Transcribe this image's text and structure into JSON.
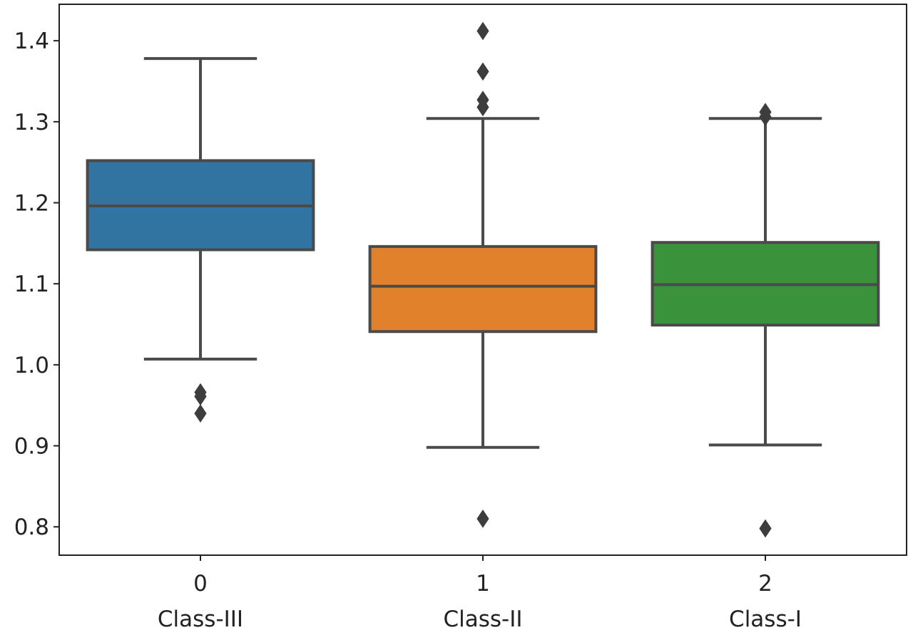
{
  "chart_data": {
    "type": "box",
    "title": "",
    "xlabel": "",
    "ylabel": "",
    "ylim": [
      0.765,
      1.445
    ],
    "yticks": [
      "0.8",
      "0.9",
      "1.0",
      "1.1",
      "1.2",
      "1.3",
      "1.4"
    ],
    "grid": false,
    "legend": "none",
    "categories": [
      "0",
      "1",
      "2"
    ],
    "category_sublabels": [
      "Class-III",
      "Class-II",
      "Class-I"
    ],
    "series": [
      {
        "category": "0",
        "color": "#3274a1",
        "whisker_low": 1.007,
        "q1": 1.142,
        "median": 1.196,
        "q3": 1.252,
        "whisker_high": 1.378,
        "outliers": [
          0.94,
          0.961,
          0.966
        ]
      },
      {
        "category": "1",
        "color": "#e1812c",
        "whisker_low": 0.898,
        "q1": 1.041,
        "median": 1.097,
        "q3": 1.146,
        "whisker_high": 1.304,
        "outliers": [
          0.81,
          1.318,
          1.327,
          1.362,
          1.412
        ]
      },
      {
        "category": "2",
        "color": "#3a923a",
        "whisker_low": 0.901,
        "q1": 1.049,
        "median": 1.099,
        "q3": 1.151,
        "whisker_high": 1.304,
        "outliers": [
          0.798,
          1.306,
          1.312
        ]
      }
    ]
  }
}
